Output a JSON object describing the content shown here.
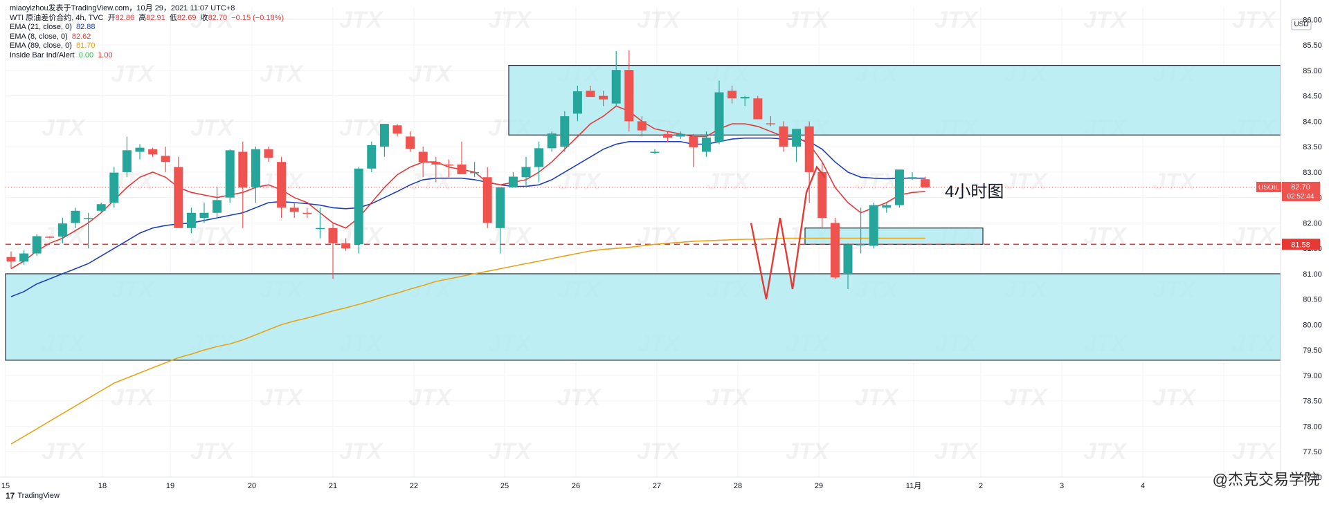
{
  "header": {
    "publisher": "miaoyizhou发表于TradingView.com，10月 29，2021 11:07 UTC+8",
    "symbol_line": "WTI 原油差价合约, 4h, TVC",
    "open_label": "开",
    "open": "82.86",
    "high_label": "高",
    "high": "82.91",
    "low_label": "低",
    "low": "82.69",
    "close_label": "收",
    "close": "82.70",
    "change": "−0.15 (−0.18%)"
  },
  "indicators": [
    {
      "label": "EMA (21, close, 0)",
      "value": "82.88",
      "color": "#1e3fbf"
    },
    {
      "label": "EMA (8, close, 0)",
      "value": "82.62",
      "color": "#e23a3a"
    },
    {
      "label": "EMA (89, close, 0)",
      "value": "81.70",
      "color": "#e8a317"
    },
    {
      "label": "Inside Bar Ind/Alert",
      "value": "0.00",
      "value2": "1.00",
      "color": "#2db84b"
    }
  ],
  "annotation_text": "4小时图",
  "price_axis": {
    "currency": "USD",
    "ticks": [
      "86.00",
      "85.50",
      "85.00",
      "84.50",
      "84.00",
      "83.50",
      "83.00",
      "82.50",
      "82.00",
      "81.50",
      "81.00",
      "80.50",
      "80.00",
      "79.50",
      "79.00",
      "78.50",
      "78.00",
      "77.50",
      "77.00"
    ],
    "last_price_tag": {
      "symbol": "USOIL",
      "price": "82.70",
      "countdown": "02:52:44"
    },
    "level_tag": "81.58"
  },
  "time_axis": {
    "ticks": [
      "15",
      "18",
      "19",
      "20",
      "21",
      "22",
      "25",
      "26",
      "27",
      "28",
      "29",
      "11月",
      "2",
      "3",
      "4",
      "5"
    ]
  },
  "footer": {
    "brand": "TradingView",
    "watermark": "@杰克交易学院"
  },
  "colors": {
    "up": "#26a69a",
    "down": "#ef5350",
    "zone": "#b2ebf2",
    "ema21": "#1e3fbf",
    "ema8": "#e23a3a",
    "ema89": "#e8a317",
    "level": "#e53935"
  },
  "chart_data": {
    "type": "candlestick",
    "ylim": [
      77.0,
      86.25
    ],
    "zones": [
      [
        83.73,
        85.1
      ],
      [
        79.3,
        81.0
      ],
      [
        81.58,
        81.9
      ]
    ],
    "level": 81.58,
    "candles": [
      [
        81.33,
        81.44,
        81.1,
        81.24
      ],
      [
        81.24,
        81.46,
        81.18,
        81.4
      ],
      [
        81.4,
        81.78,
        81.35,
        81.74
      ],
      [
        81.73,
        81.74,
        81.7,
        81.72
      ],
      [
        81.73,
        82.1,
        81.6,
        81.99
      ],
      [
        82.0,
        82.3,
        81.9,
        82.24
      ],
      [
        82.1,
        82.2,
        81.5,
        82.1
      ],
      [
        82.24,
        82.4,
        82.2,
        82.37
      ],
      [
        82.4,
        83.1,
        82.3,
        82.99
      ],
      [
        83.0,
        83.7,
        82.9,
        83.43
      ],
      [
        83.4,
        83.55,
        83.25,
        83.48
      ],
      [
        83.45,
        83.48,
        83.3,
        83.35
      ],
      [
        83.32,
        83.5,
        83.0,
        83.2
      ],
      [
        83.1,
        83.3,
        81.9,
        81.9
      ],
      [
        81.9,
        82.3,
        81.8,
        82.2
      ],
      [
        82.1,
        82.4,
        82.0,
        82.2
      ],
      [
        82.2,
        82.7,
        82.1,
        82.45
      ],
      [
        82.5,
        83.45,
        82.4,
        83.43
      ],
      [
        83.4,
        83.6,
        81.9,
        82.7
      ],
      [
        82.7,
        83.5,
        82.4,
        83.45
      ],
      [
        83.45,
        83.5,
        83.2,
        83.28
      ],
      [
        83.2,
        83.3,
        82.1,
        82.3
      ],
      [
        82.3,
        82.4,
        82.1,
        82.22
      ],
      [
        82.2,
        82.3,
        82.1,
        82.18
      ],
      [
        81.9,
        82.3,
        81.7,
        81.9
      ],
      [
        81.9,
        82.0,
        80.9,
        81.6
      ],
      [
        81.6,
        81.7,
        81.45,
        81.5
      ],
      [
        81.58,
        83.1,
        81.4,
        83.07
      ],
      [
        83.07,
        83.6,
        83.0,
        83.53
      ],
      [
        83.5,
        83.95,
        83.3,
        83.95
      ],
      [
        83.92,
        83.95,
        83.7,
        83.76
      ],
      [
        83.7,
        83.8,
        83.4,
        83.46
      ],
      [
        83.4,
        83.5,
        82.9,
        83.2
      ],
      [
        83.2,
        83.3,
        82.8,
        83.15
      ],
      [
        83.15,
        83.25,
        82.9,
        83.13
      ],
      [
        83.15,
        83.6,
        83.0,
        82.96
      ],
      [
        83.0,
        83.2,
        82.9,
        83.0
      ],
      [
        82.9,
        83.1,
        81.9,
        82.0
      ],
      [
        81.9,
        82.7,
        81.4,
        82.7
      ],
      [
        82.7,
        83.0,
        82.7,
        82.91
      ],
      [
        82.9,
        83.3,
        82.7,
        83.1
      ],
      [
        83.1,
        83.6,
        82.8,
        83.47
      ],
      [
        83.47,
        83.8,
        83.4,
        83.76
      ],
      [
        83.5,
        84.2,
        83.4,
        84.1
      ],
      [
        84.15,
        84.7,
        84.0,
        84.59
      ],
      [
        84.6,
        84.7,
        84.5,
        84.48
      ],
      [
        84.5,
        84.6,
        84.3,
        84.43
      ],
      [
        84.35,
        85.38,
        84.3,
        85.01
      ],
      [
        85.01,
        85.4,
        83.8,
        84.0
      ],
      [
        84.0,
        84.1,
        83.7,
        83.82
      ],
      [
        83.4,
        83.45,
        83.35,
        83.4
      ],
      [
        83.75,
        83.8,
        83.6,
        83.68
      ],
      [
        83.7,
        83.8,
        83.65,
        83.75
      ],
      [
        83.7,
        83.75,
        83.1,
        83.49
      ],
      [
        83.4,
        83.8,
        83.3,
        83.68
      ],
      [
        83.6,
        84.8,
        83.55,
        84.57
      ],
      [
        84.6,
        84.7,
        84.35,
        84.45
      ],
      [
        84.45,
        84.5,
        84.3,
        84.48
      ],
      [
        84.45,
        84.5,
        84.05,
        84.04
      ],
      [
        83.96,
        84.1,
        83.9,
        83.94
      ],
      [
        83.9,
        84.0,
        83.4,
        83.5
      ],
      [
        83.5,
        83.85,
        83.2,
        83.85
      ],
      [
        83.9,
        84.0,
        82.4,
        83.0
      ],
      [
        83.0,
        83.2,
        81.9,
        82.1
      ],
      [
        82.0,
        82.1,
        80.9,
        80.93
      ],
      [
        81.0,
        81.6,
        80.7,
        81.58
      ],
      [
        81.58,
        82.3,
        81.4,
        81.58
      ],
      [
        81.55,
        82.4,
        81.5,
        82.35
      ],
      [
        82.3,
        82.4,
        82.2,
        82.35
      ],
      [
        82.35,
        83.05,
        82.3,
        83.05
      ],
      [
        82.9,
        83.0,
        82.85,
        82.9
      ],
      [
        82.86,
        82.91,
        82.69,
        82.7
      ]
    ],
    "ema8": [
      81.1,
      81.25,
      81.45,
      81.6,
      81.7,
      81.85,
      82.0,
      82.2,
      82.45,
      82.7,
      82.9,
      83.0,
      82.9,
      82.7,
      82.6,
      82.55,
      82.5,
      82.55,
      82.6,
      82.7,
      82.75,
      82.65,
      82.5,
      82.4,
      82.2,
      82.0,
      81.9,
      82.1,
      82.4,
      82.7,
      82.95,
      83.1,
      83.2,
      83.2,
      83.1,
      83.05,
      83.0,
      82.8,
      82.75,
      82.8,
      82.85,
      83.0,
      83.2,
      83.45,
      83.7,
      83.95,
      84.1,
      84.3,
      84.2,
      84.0,
      83.85,
      83.8,
      83.75,
      83.7,
      83.7,
      83.85,
      83.95,
      83.95,
      83.9,
      83.8,
      83.7,
      83.7,
      83.55,
      83.2,
      82.7,
      82.4,
      82.2,
      82.3,
      82.4,
      82.55,
      82.6,
      82.62
    ],
    "ema21": [
      80.55,
      80.65,
      80.8,
      80.9,
      81.0,
      81.1,
      81.2,
      81.35,
      81.5,
      81.65,
      81.8,
      81.9,
      81.95,
      81.98,
      82.0,
      82.05,
      82.1,
      82.15,
      82.2,
      82.3,
      82.4,
      82.42,
      82.4,
      82.38,
      82.35,
      82.3,
      82.28,
      82.3,
      82.38,
      82.5,
      82.62,
      82.75,
      82.85,
      82.88,
      82.88,
      82.88,
      82.85,
      82.8,
      82.75,
      82.72,
      82.72,
      82.75,
      82.85,
      83.0,
      83.15,
      83.3,
      83.45,
      83.55,
      83.6,
      83.6,
      83.6,
      83.6,
      83.6,
      83.55,
      83.55,
      83.6,
      83.65,
      83.67,
      83.67,
      83.67,
      83.65,
      83.65,
      83.6,
      83.45,
      83.2,
      83.0,
      82.9,
      82.88,
      82.87,
      82.88,
      82.88,
      82.88
    ],
    "ema89": [
      77.65,
      77.8,
      77.95,
      78.1,
      78.25,
      78.4,
      78.55,
      78.7,
      78.85,
      78.95,
      79.05,
      79.15,
      79.25,
      79.35,
      79.42,
      79.5,
      79.57,
      79.62,
      79.7,
      79.8,
      79.9,
      80.0,
      80.07,
      80.13,
      80.2,
      80.27,
      80.33,
      80.4,
      80.47,
      80.55,
      80.62,
      80.7,
      80.77,
      80.85,
      80.9,
      80.95,
      81.0,
      81.05,
      81.1,
      81.15,
      81.2,
      81.25,
      81.3,
      81.35,
      81.4,
      81.45,
      81.48,
      81.5,
      81.52,
      81.55,
      81.58,
      81.6,
      81.62,
      81.64,
      81.65,
      81.66,
      81.67,
      81.68,
      81.68,
      81.69,
      81.7,
      81.7,
      81.7,
      81.7,
      81.7,
      81.7,
      81.7,
      81.7,
      81.7,
      81.7,
      81.7,
      81.7
    ]
  }
}
